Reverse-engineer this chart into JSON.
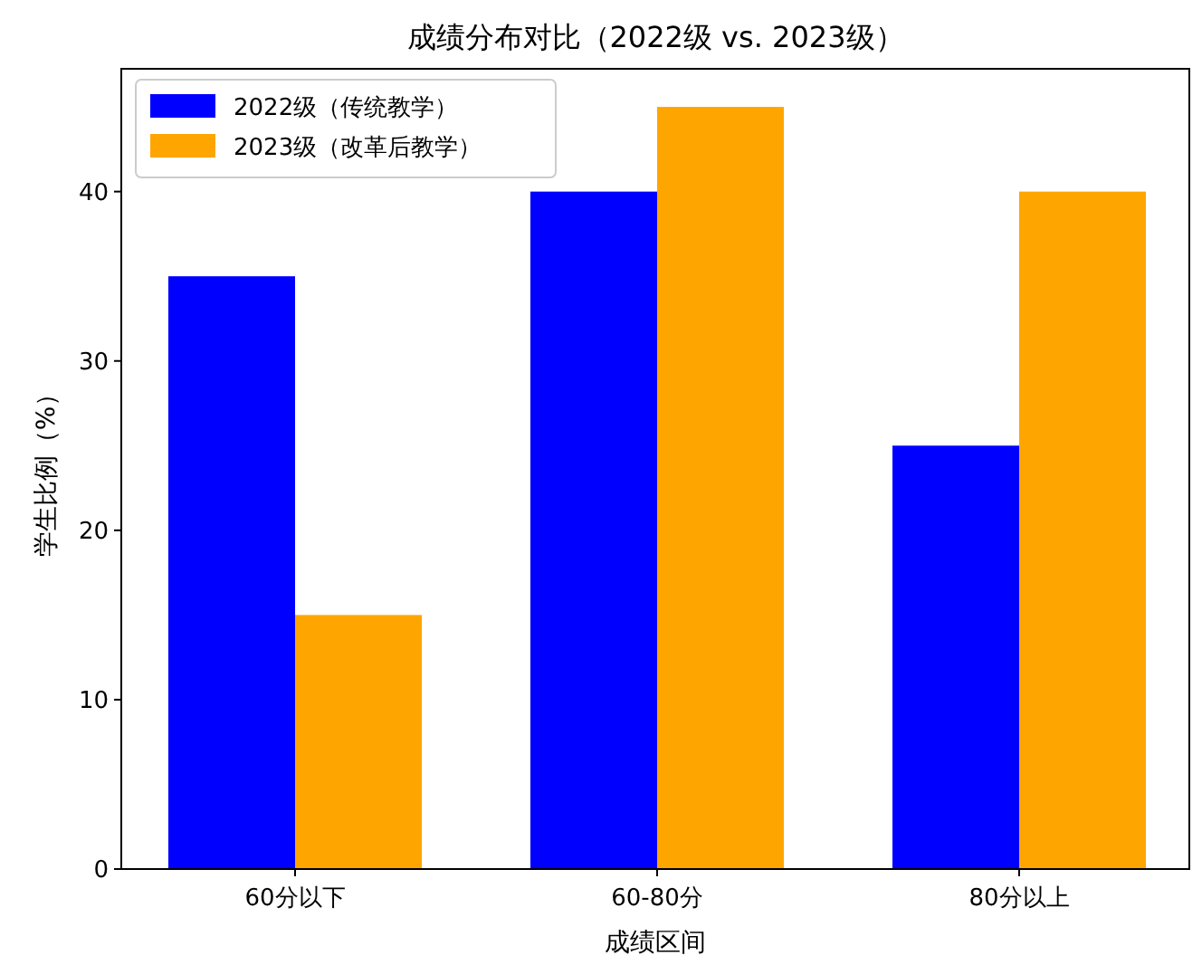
{
  "chart_data": {
    "type": "bar",
    "title": "成绩分布对比（2022级 vs. 2023级）",
    "xlabel": "成绩区间",
    "ylabel": "学生比例（%）",
    "categories": [
      "60分以下",
      "60-80分",
      "80分以上"
    ],
    "series": [
      {
        "name": "2022级（传统教学）",
        "color": "#0000ff",
        "values": [
          35,
          40,
          25
        ]
      },
      {
        "name": "2023级（改革后教学）",
        "color": "#ffa500",
        "values": [
          15,
          45,
          40
        ]
      }
    ],
    "ylim": [
      0,
      47.25
    ],
    "yticks": [
      0,
      10,
      20,
      30,
      40
    ],
    "legend": "top left",
    "grid": false
  }
}
